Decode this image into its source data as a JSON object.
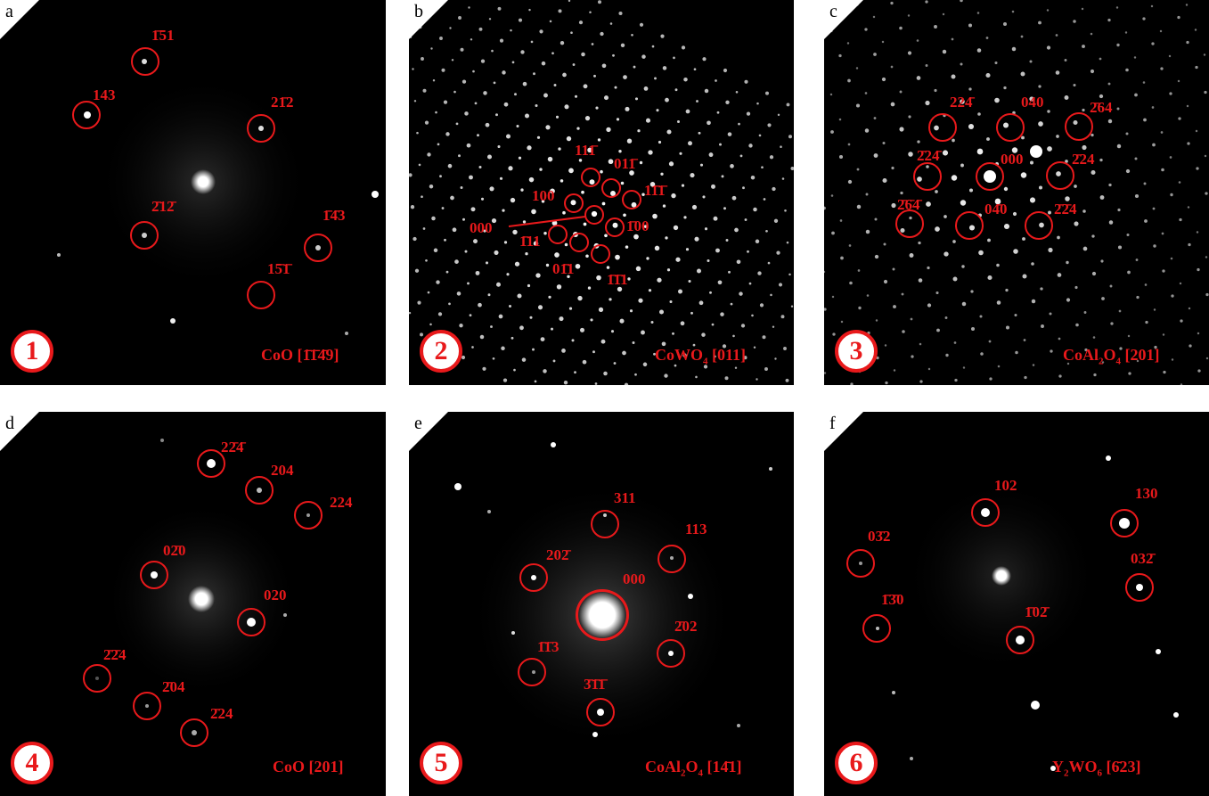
{
  "panels": [
    {
      "letter": "a",
      "number": "1",
      "caption": [
        "CoO [",
        "1̄1̄4̄9",
        "]"
      ],
      "labels": [
        "1̄51",
        "143",
        "21̄2",
        "2̄12̄",
        "1̄4̄3",
        "15̄1̄"
      ]
    },
    {
      "letter": "b",
      "number": "2",
      "caption": [
        "CoWO",
        "4",
        " [011]"
      ],
      "labels": [
        "111̄",
        "011̄",
        "11̄1̄",
        "100",
        "000",
        "1̄00",
        "1̄11",
        "01̄1",
        "1̄1̄1"
      ]
    },
    {
      "letter": "c",
      "number": "3",
      "caption": [
        "CoAl",
        "2",
        "O",
        "4",
        " [201]"
      ],
      "labels": [
        "224̄",
        "040",
        "2̄64",
        "2̄24̄",
        "000",
        "2̄24",
        "2̄6̄4̄",
        "04̄0",
        "2̄2̄4"
      ]
    },
    {
      "letter": "d",
      "number": "4",
      "caption": [
        "CoO [201]"
      ],
      "labels": [
        "22̄4̄",
        "204",
        "224",
        "02̄0",
        "020",
        "2̄2̄4",
        "2̄04",
        "2̄24"
      ]
    },
    {
      "letter": "e",
      "number": "5",
      "caption": [
        "CoAl",
        "2",
        "O",
        "4",
        " [14̄1]"
      ],
      "labels": [
        "311",
        "113",
        "202̄",
        "000",
        "2̄02",
        "1̄1̄3",
        "3̄1̄1̄"
      ]
    },
    {
      "letter": "f",
      "number": "6",
      "caption": [
        "Y",
        "2",
        "WO",
        "6",
        " [6̄23]"
      ],
      "labels": [
        "102",
        "130",
        "03̄2",
        "032̄",
        "1̄3̄0",
        "1̄02̄"
      ]
    }
  ],
  "colors": {
    "accent": "#e8191b",
    "background": "#000000"
  }
}
